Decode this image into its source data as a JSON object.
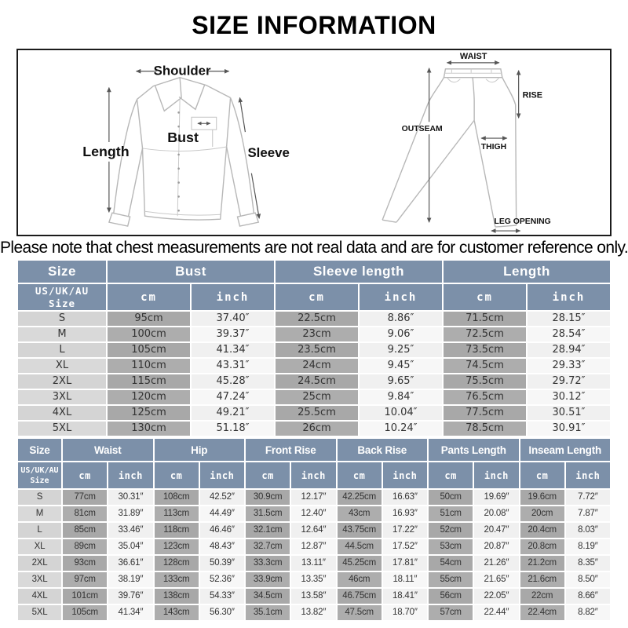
{
  "title": "SIZE INFORMATION",
  "note": "Please note that chest measurements are not real data and are for customer reference only.",
  "colors": {
    "header_bg": "#7c90a9",
    "size_cell_bg": "#d4d4d4",
    "cm_cell_bg": "#a8a8a8",
    "inch_cell_bg": "#f0f0f0"
  },
  "diagram": {
    "shirt": {
      "shoulder": "Shoulder",
      "length": "Length",
      "bust": "Bust",
      "sleeve": "Sleeve"
    },
    "pants": {
      "waist": "WAIST",
      "rise": "RISE",
      "outseam": "OUTSEAM",
      "thigh": "THIGH",
      "leg_opening": "LEG OPENING"
    }
  },
  "top_table": {
    "groups": [
      "Size",
      "Bust",
      "Sleeve length",
      "Length"
    ],
    "size_header": "US/UK/AU\nSize",
    "unit_cm": "cm",
    "unit_inch": "inch",
    "rows": [
      {
        "size": "S",
        "cells": [
          "95cm",
          "37.40″",
          "22.5cm",
          "8.86″",
          "71.5cm",
          "28.15″"
        ]
      },
      {
        "size": "M",
        "cells": [
          "100cm",
          "39.37″",
          "23cm",
          "9.06″",
          "72.5cm",
          "28.54″"
        ]
      },
      {
        "size": "L",
        "cells": [
          "105cm",
          "41.34″",
          "23.5cm",
          "9.25″",
          "73.5cm",
          "28.94″"
        ]
      },
      {
        "size": "XL",
        "cells": [
          "110cm",
          "43.31″",
          "24cm",
          "9.45″",
          "74.5cm",
          "29.33″"
        ]
      },
      {
        "size": "2XL",
        "cells": [
          "115cm",
          "45.28″",
          "24.5cm",
          "9.65″",
          "75.5cm",
          "29.72″"
        ]
      },
      {
        "size": "3XL",
        "cells": [
          "120cm",
          "47.24″",
          "25cm",
          "9.84″",
          "76.5cm",
          "30.12″"
        ]
      },
      {
        "size": "4XL",
        "cells": [
          "125cm",
          "49.21″",
          "25.5cm",
          "10.04″",
          "77.5cm",
          "30.51″"
        ]
      },
      {
        "size": "5XL",
        "cells": [
          "130cm",
          "51.18″",
          "26cm",
          "10.24″",
          "78.5cm",
          "30.91″"
        ]
      }
    ]
  },
  "bottom_table": {
    "groups": [
      "Size",
      "Waist",
      "Hip",
      "Front Rise",
      "Back Rise",
      "Pants Length",
      "Inseam Length"
    ],
    "size_header": "US/UK/AU\nSize",
    "unit_cm": "cm",
    "unit_inch": "inch",
    "rows": [
      {
        "size": "S",
        "cells": [
          "77cm",
          "30.31″",
          "108cm",
          "42.52″",
          "30.9cm",
          "12.17″",
          "42.25cm",
          "16.63″",
          "50cm",
          "19.69″",
          "19.6cm",
          "7.72″"
        ]
      },
      {
        "size": "M",
        "cells": [
          "81cm",
          "31.89″",
          "113cm",
          "44.49″",
          "31.5cm",
          "12.40″",
          "43cm",
          "16.93″",
          "51cm",
          "20.08″",
          "20cm",
          "7.87″"
        ]
      },
      {
        "size": "L",
        "cells": [
          "85cm",
          "33.46″",
          "118cm",
          "46.46″",
          "32.1cm",
          "12.64″",
          "43.75cm",
          "17.22″",
          "52cm",
          "20.47″",
          "20.4cm",
          "8.03″"
        ]
      },
      {
        "size": "XL",
        "cells": [
          "89cm",
          "35.04″",
          "123cm",
          "48.43″",
          "32.7cm",
          "12.87″",
          "44.5cm",
          "17.52″",
          "53cm",
          "20.87″",
          "20.8cm",
          "8.19″"
        ]
      },
      {
        "size": "2XL",
        "cells": [
          "93cm",
          "36.61″",
          "128cm",
          "50.39″",
          "33.3cm",
          "13.11″",
          "45.25cm",
          "17.81″",
          "54cm",
          "21.26″",
          "21.2cm",
          "8.35″"
        ]
      },
      {
        "size": "3XL",
        "cells": [
          "97cm",
          "38.19″",
          "133cm",
          "52.36″",
          "33.9cm",
          "13.35″",
          "46cm",
          "18.11″",
          "55cm",
          "21.65″",
          "21.6cm",
          "8.50″"
        ]
      },
      {
        "size": "4XL",
        "cells": [
          "101cm",
          "39.76″",
          "138cm",
          "54.33″",
          "34.5cm",
          "13.58″",
          "46.75cm",
          "18.41″",
          "56cm",
          "22.05″",
          "22cm",
          "8.66″"
        ]
      },
      {
        "size": "5XL",
        "cells": [
          "105cm",
          "41.34″",
          "143cm",
          "56.30″",
          "35.1cm",
          "13.82″",
          "47.5cm",
          "18.70″",
          "57cm",
          "22.44″",
          "22.4cm",
          "8.82″"
        ]
      }
    ]
  }
}
